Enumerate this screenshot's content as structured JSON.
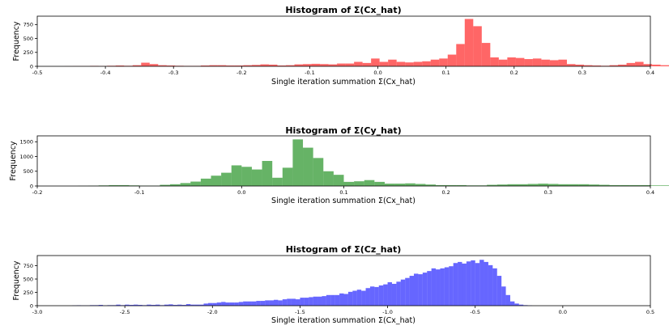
{
  "chart_data": [
    {
      "type": "bar",
      "histogram": true,
      "title": "Histogram of Σ(Cx_hat)",
      "xlabel": "Single iteration summation Σ(Cx_hat)",
      "ylabel": "Frequency",
      "color": "#ff0000",
      "alpha": 0.6,
      "xlim": [
        -0.5,
        0.4
      ],
      "ylim": [
        0,
        900
      ],
      "xticks": [
        "-0.5",
        "-0.4",
        "-0.3",
        "-0.2",
        "-0.1",
        "0.0",
        "0.1",
        "0.2",
        "0.3",
        "0.4"
      ],
      "yticks": [
        "0",
        "250",
        "500",
        "750"
      ],
      "bin_start": -0.46,
      "bin_width": 0.0125,
      "values": [
        2,
        3,
        3,
        8,
        5,
        10,
        15,
        10,
        20,
        65,
        40,
        20,
        15,
        10,
        8,
        8,
        15,
        20,
        20,
        15,
        15,
        20,
        25,
        35,
        30,
        15,
        20,
        35,
        40,
        45,
        40,
        35,
        50,
        50,
        80,
        60,
        140,
        80,
        120,
        80,
        70,
        80,
        90,
        120,
        140,
        210,
        400,
        850,
        720,
        420,
        160,
        120,
        160,
        150,
        130,
        140,
        120,
        110,
        120,
        40,
        30,
        20,
        15,
        10,
        20,
        30,
        60,
        80,
        40,
        30,
        20,
        15,
        10,
        5,
        3,
        2
      ]
    },
    {
      "type": "bar",
      "histogram": true,
      "title": "Histogram of Σ(Cy_hat)",
      "xlabel": "Single iteration summation Σ(Cx_hat)",
      "ylabel": "Frequency",
      "color": "#008000",
      "alpha": 0.6,
      "xlim": [
        -0.2,
        0.4
      ],
      "ylim": [
        0,
        1700
      ],
      "xticks": [
        "-0.2",
        "-0.1",
        "0.0",
        "0.1",
        "0.2",
        "0.3",
        "0.4"
      ],
      "yticks": [
        "0",
        "500",
        "1000",
        "1500"
      ],
      "bin_start": -0.16,
      "bin_width": 0.01,
      "values": [
        5,
        10,
        20,
        30,
        30,
        20,
        10,
        10,
        40,
        60,
        100,
        150,
        250,
        350,
        450,
        700,
        650,
        560,
        850,
        280,
        620,
        1580,
        1300,
        950,
        500,
        380,
        140,
        160,
        200,
        140,
        80,
        80,
        90,
        70,
        50,
        30,
        30,
        30,
        20,
        20,
        40,
        50,
        60,
        60,
        70,
        80,
        70,
        60,
        60,
        60,
        50,
        40,
        30,
        30,
        30,
        30,
        20,
        20,
        20,
        20,
        20,
        20,
        20,
        20,
        20,
        20,
        30,
        20,
        20,
        20,
        20,
        20,
        20,
        20,
        10,
        5
      ]
    },
    {
      "type": "bar",
      "histogram": true,
      "title": "Histogram of Σ(Cz_hat)",
      "xlabel": "Single iteration summation Σ(Cx_hat)",
      "ylabel": "Frequency",
      "color": "#0000ff",
      "alpha": 0.6,
      "xlim": [
        -3.0,
        0.5
      ],
      "ylim": [
        0,
        940
      ],
      "xticks": [
        "-3.0",
        "-2.5",
        "-2.0",
        "-1.5",
        "-1.0",
        "-0.5",
        "0.0",
        "0.5"
      ],
      "yticks": [
        "0",
        "250",
        "500",
        "750"
      ],
      "bin_start": -2.8,
      "bin_width": 0.025,
      "values": [
        5,
        8,
        5,
        5,
        10,
        10,
        15,
        5,
        10,
        10,
        20,
        10,
        20,
        15,
        20,
        15,
        10,
        20,
        15,
        20,
        10,
        20,
        25,
        15,
        20,
        15,
        30,
        20,
        20,
        20,
        40,
        50,
        50,
        60,
        70,
        60,
        60,
        60,
        70,
        80,
        80,
        80,
        90,
        90,
        100,
        100,
        110,
        100,
        120,
        130,
        130,
        120,
        150,
        150,
        160,
        170,
        170,
        180,
        200,
        200,
        200,
        230,
        220,
        260,
        280,
        300,
        280,
        330,
        360,
        350,
        380,
        400,
        440,
        410,
        450,
        490,
        520,
        560,
        600,
        590,
        620,
        650,
        700,
        680,
        700,
        720,
        740,
        800,
        820,
        790,
        830,
        850,
        800,
        860,
        820,
        760,
        700,
        560,
        360,
        200,
        80,
        40,
        20,
        10,
        5
      ]
    }
  ]
}
